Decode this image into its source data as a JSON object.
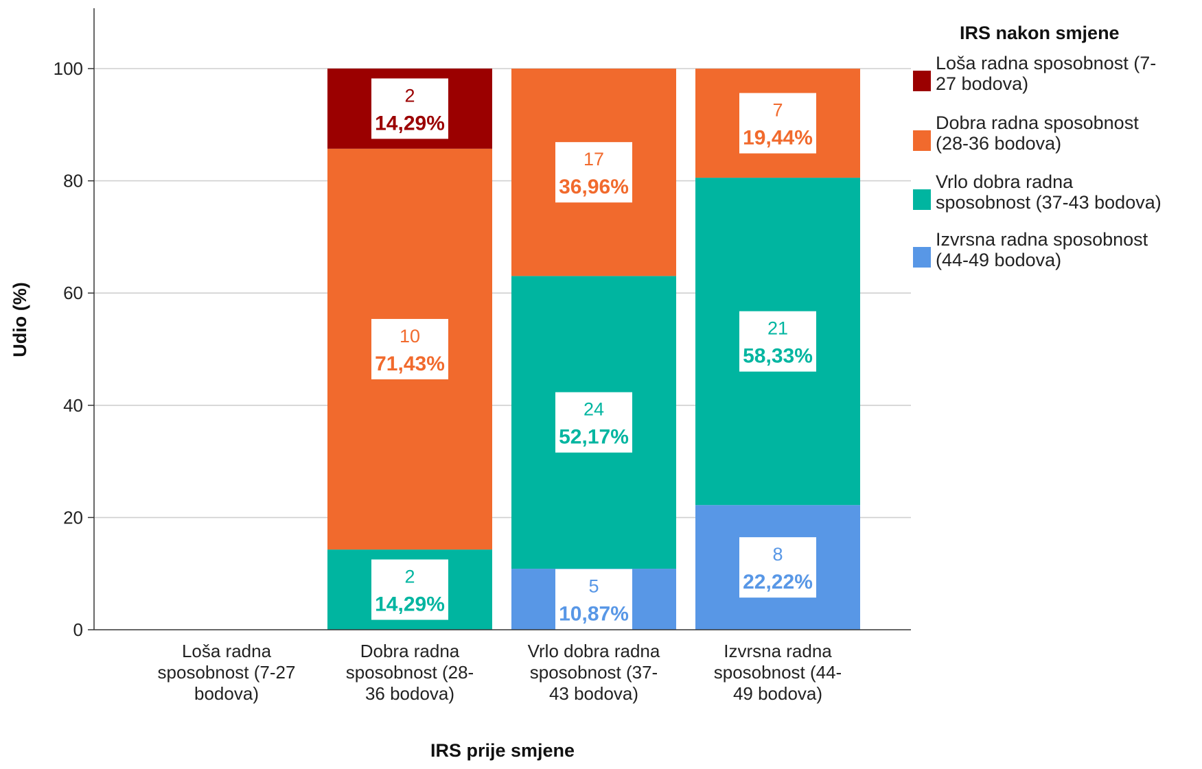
{
  "chart_data": {
    "type": "bar",
    "stacked": true,
    "title": "",
    "xlabel": "IRS prije smjene",
    "ylabel": "Udio (%)",
    "ylim": [
      0,
      100
    ],
    "yticks": [
      "0",
      "20",
      "40",
      "60",
      "80",
      "100"
    ],
    "grid": true,
    "categories": [
      [
        "Loša radna",
        "sposobnost (7-27",
        "bodova)"
      ],
      [
        "Dobra radna",
        "sposobnost (28-",
        "36 bodova)"
      ],
      [
        "Vrlo dobra radna",
        "sposobnost (37-",
        "43 bodova)"
      ],
      [
        "Izvrsna radna",
        "sposobnost (44-",
        "49 bodova)"
      ]
    ],
    "legend_title": "IRS nakon smjene",
    "legend_position": "right",
    "series": [
      {
        "name": [
          "Loša radna sposobnost (7-",
          "27 bodova)"
        ],
        "color": "#9b0000",
        "values": [
          0,
          14.29,
          0,
          0
        ],
        "counts": [
          null,
          "2",
          null,
          null
        ],
        "pct_labels": [
          null,
          "14,29%",
          null,
          null
        ]
      },
      {
        "name": [
          "Dobra radna sposobnost",
          "(28-36 bodova)"
        ],
        "color": "#f16a2d",
        "values": [
          0,
          71.43,
          36.96,
          19.44
        ],
        "counts": [
          null,
          "10",
          "17",
          "7"
        ],
        "pct_labels": [
          null,
          "71,43%",
          "36,96%",
          "19,44%"
        ]
      },
      {
        "name": [
          "Vrlo dobra radna",
          "sposobnost (37-43 bodova)"
        ],
        "color": "#00b5a0",
        "values": [
          0,
          14.29,
          52.17,
          58.33
        ],
        "counts": [
          null,
          "2",
          "24",
          "21"
        ],
        "pct_labels": [
          null,
          "14,29%",
          "52,17%",
          "58,33%"
        ]
      },
      {
        "name": [
          "Izvrsna radna sposobnost",
          "(44-49 bodova)"
        ],
        "color": "#5897e6",
        "values": [
          0,
          0,
          10.87,
          22.22
        ],
        "counts": [
          null,
          null,
          "5",
          "8"
        ],
        "pct_labels": [
          null,
          null,
          "10,87%",
          "22,22%"
        ]
      }
    ],
    "stack_order_bottom_to_top": [
      3,
      2,
      1,
      0
    ]
  }
}
